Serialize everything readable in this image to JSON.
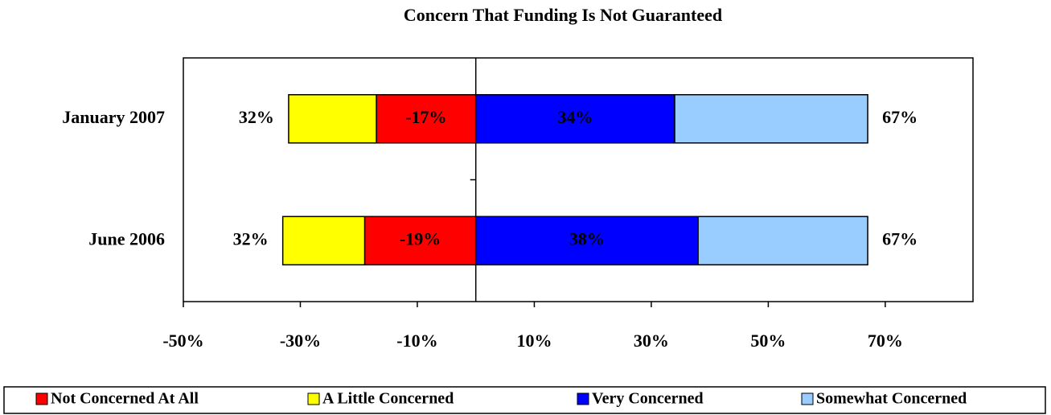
{
  "chart_data": {
    "type": "diverging_bar",
    "title": "Concern That Funding Is Not Guaranteed",
    "categories": [
      "January 2007",
      "June 2006"
    ],
    "series": [
      {
        "name": "Not Concerned At All",
        "color": "#ff0000",
        "values": [
          -17,
          -19
        ],
        "value_labels": [
          "-17%",
          "-19%"
        ]
      },
      {
        "name": "A Little Concerned",
        "color": "#ffff00",
        "values": [
          -15,
          -14
        ]
      },
      {
        "name": "Very Concerned",
        "color": "#0000ff",
        "values": [
          34,
          38
        ],
        "value_labels": [
          "34%",
          "38%"
        ]
      },
      {
        "name": "Somewhat Concerned",
        "color": "#99ccff",
        "values": [
          33,
          29
        ]
      }
    ],
    "left_totals": [
      "32%",
      "32%"
    ],
    "right_totals": [
      "67%",
      "67%"
    ],
    "xlim": [
      -50,
      85
    ],
    "xticks": [
      {
        "value": -50,
        "label": "-50%"
      },
      {
        "value": -30,
        "label": "-30%"
      },
      {
        "value": -10,
        "label": "-10%"
      },
      {
        "value": 10,
        "label": "10%"
      },
      {
        "value": 30,
        "label": "30%"
      },
      {
        "value": 50,
        "label": "50%"
      },
      {
        "value": 70,
        "label": "70%"
      }
    ],
    "legend": "bottom"
  }
}
